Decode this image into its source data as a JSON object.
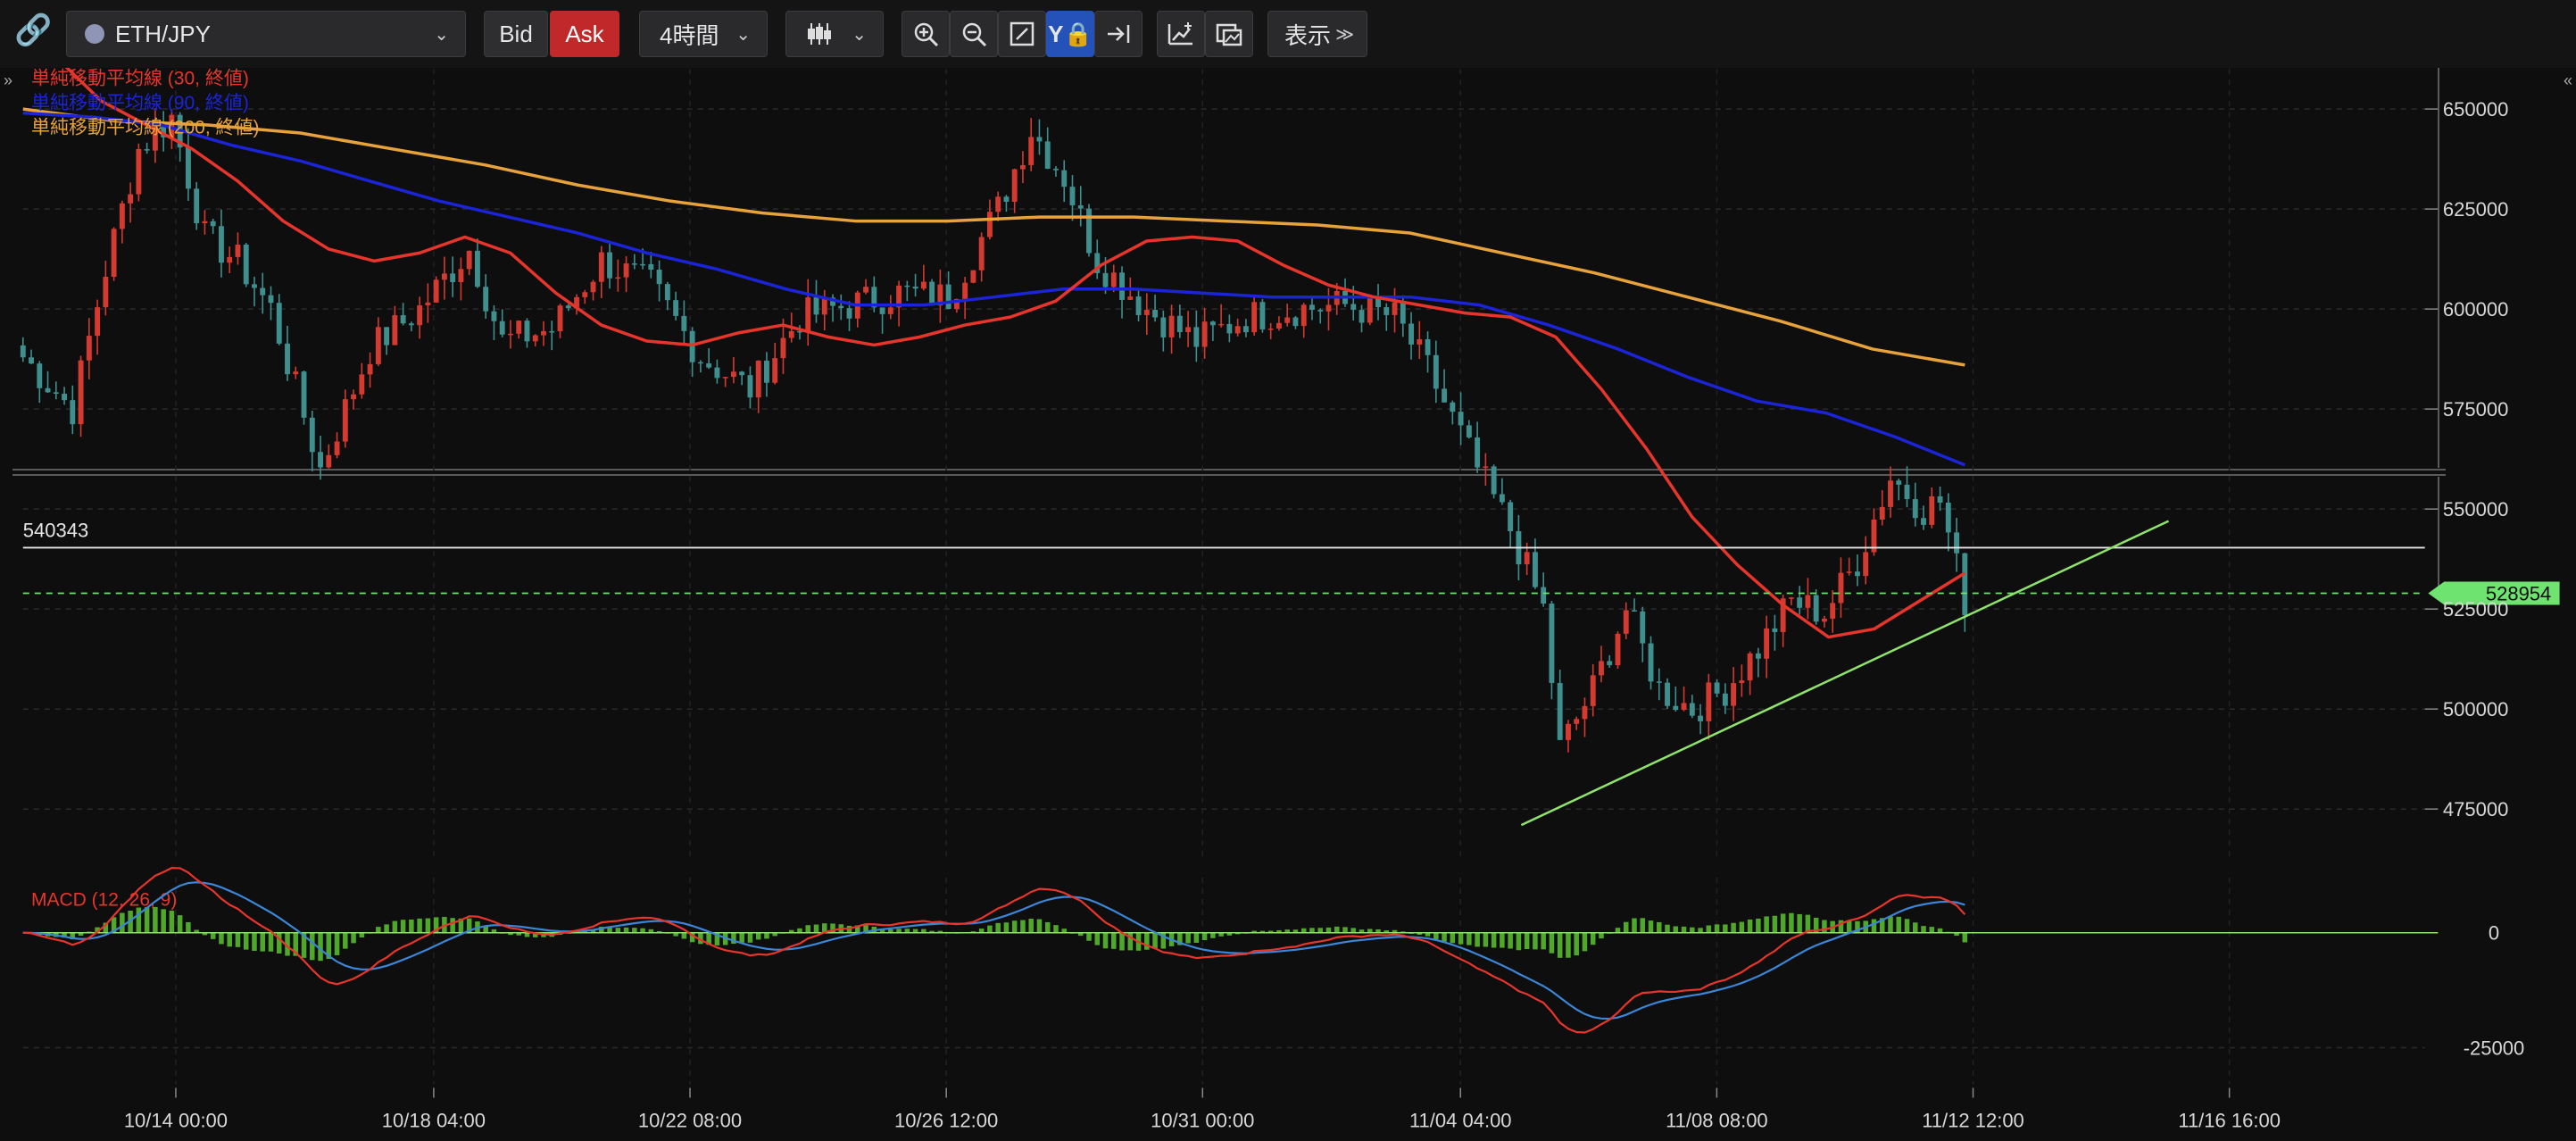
{
  "toolbar": {
    "symbol": "ETH/JPY",
    "bid_label": "Bid",
    "ask_label": "Ask",
    "timeframe": "4時間",
    "display_label": "表示",
    "icons": [
      "link-icon",
      "zoom-in-icon",
      "zoom-out-icon",
      "fit-icon",
      "y-lock-icon",
      "scroll-end-icon",
      "add-indicator-icon",
      "snapshot-icon",
      "candlestick-icon"
    ]
  },
  "legend": {
    "sma30": "単純移動平均線 (30, 終値)",
    "sma90": "単純移動平均線 (90, 終値)",
    "sma200": "単純移動平均線 (200, 終値)",
    "macd": "MACD (12, 26, 9)"
  },
  "colors": {
    "up": "#d43a2f",
    "down": "#3f8f8f",
    "sma30": "#e8352c",
    "sma90": "#1b24d8",
    "sma200": "#e7a23b",
    "hline": "#e6e6e6",
    "last_price": "#6fe36f",
    "trend": "#8fe36b",
    "macd_line": "#e8352c",
    "signal_line": "#3b86d8",
    "histogram": "#4fa82a"
  },
  "chart_data": {
    "type": "candlestick",
    "price_axis": {
      "ticks": [
        "650000",
        "625000",
        "600000",
        "575000",
        "550000",
        "525000",
        "500000",
        "475000"
      ],
      "tick_values": [
        650000,
        625000,
        600000,
        575000,
        550000,
        525000,
        500000,
        475000
      ],
      "range": [
        462000,
        660000
      ]
    },
    "time_axis": {
      "labels": [
        "10/14 00:00",
        "10/18 04:00",
        "10/22 08:00",
        "10/26 12:00",
        "10/31 00:00",
        "11/04 04:00",
        "11/08 08:00",
        "11/12 12:00",
        "11/16 16:00"
      ]
    },
    "horizontal_line": {
      "value": 540343,
      "label": "540343"
    },
    "last_price": {
      "value": 528954,
      "label": "528954"
    },
    "trendline": {
      "from": [
        "11/04 04:00",
        471000
      ],
      "to": [
        "11/15 00:00",
        547000
      ]
    },
    "sma30": [
      663000,
      652000,
      646000,
      640000,
      632000,
      622000,
      615000,
      612000,
      614000,
      618000,
      614000,
      604000,
      596000,
      592000,
      591000,
      594000,
      596000,
      593000,
      591000,
      593000,
      596000,
      598000,
      602000,
      611000,
      617000,
      618000,
      617000,
      611000,
      606000,
      603000,
      601000,
      599000,
      598000,
      593000,
      580000,
      565000,
      548000,
      536000,
      526000,
      518000,
      520000,
      527000,
      534000
    ],
    "sma90": [
      649000,
      648000,
      646000,
      641000,
      637000,
      632000,
      627000,
      623000,
      619000,
      614000,
      610000,
      605000,
      601000,
      601000,
      603000,
      605000,
      605000,
      604000,
      603000,
      603000,
      603000,
      601000,
      596000,
      590000,
      583000,
      577000,
      574000,
      568000,
      561000
    ],
    "sma200": [
      650000,
      647000,
      646000,
      644000,
      640000,
      636000,
      631000,
      627000,
      624000,
      622000,
      622000,
      623000,
      623000,
      622000,
      621000,
      619000,
      614000,
      609000,
      603000,
      597000,
      590000,
      586000
    ],
    "macd": {
      "ticks": [
        "0",
        "-25000"
      ],
      "tick_values": [
        0,
        -25000
      ],
      "range": [
        -33000,
        12000
      ]
    }
  }
}
